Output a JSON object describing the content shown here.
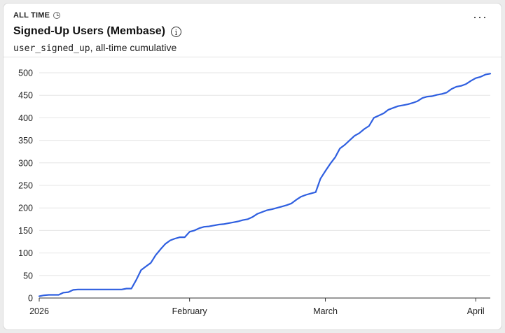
{
  "header": {
    "period_label": "ALL TIME",
    "title": "Signed-Up Users (Membase)",
    "info_icon": "info-icon",
    "subtitle_metric": "user_signed_up",
    "subtitle_rest": ", all-time cumulative",
    "more_label": "···"
  },
  "colors": {
    "line": "#2f5fe0",
    "grid": "#e6e6e6",
    "axis": "#333333"
  },
  "chart_data": {
    "type": "line",
    "title": "Signed-Up Users (Membase)",
    "xlabel": "",
    "ylabel": "",
    "ylim": [
      0,
      500
    ],
    "y_ticks": [
      0,
      50,
      100,
      150,
      200,
      250,
      300,
      350,
      400,
      450,
      500
    ],
    "x_ticks": [
      {
        "label": "2026",
        "date": "2026-01-01"
      },
      {
        "label": "February",
        "date": "2026-02-01"
      },
      {
        "label": "March",
        "date": "2026-03-01"
      },
      {
        "label": "April",
        "date": "2026-04-01"
      }
    ],
    "grid": true,
    "series": [
      {
        "values": [
          [
            "2026-01-01",
            4
          ],
          [
            "2026-01-02",
            6
          ],
          [
            "2026-01-03",
            7
          ],
          [
            "2026-01-04",
            7
          ],
          [
            "2026-01-05",
            7
          ],
          [
            "2026-01-06",
            12
          ],
          [
            "2026-01-07",
            13
          ],
          [
            "2026-01-08",
            18
          ],
          [
            "2026-01-09",
            19
          ],
          [
            "2026-01-10",
            19
          ],
          [
            "2026-01-12",
            19
          ],
          [
            "2026-01-14",
            19
          ],
          [
            "2026-01-16",
            19
          ],
          [
            "2026-01-18",
            19
          ],
          [
            "2026-01-19",
            21
          ],
          [
            "2026-01-20",
            21
          ],
          [
            "2026-01-21",
            40
          ],
          [
            "2026-01-22",
            62
          ],
          [
            "2026-01-23",
            70
          ],
          [
            "2026-01-24",
            78
          ],
          [
            "2026-01-25",
            95
          ],
          [
            "2026-01-26",
            108
          ],
          [
            "2026-01-27",
            120
          ],
          [
            "2026-01-28",
            128
          ],
          [
            "2026-01-29",
            132
          ],
          [
            "2026-01-30",
            135
          ],
          [
            "2026-01-31",
            135
          ],
          [
            "2026-02-01",
            147
          ],
          [
            "2026-02-02",
            150
          ],
          [
            "2026-02-03",
            155
          ],
          [
            "2026-02-04",
            158
          ],
          [
            "2026-02-05",
            159
          ],
          [
            "2026-02-06",
            161
          ],
          [
            "2026-02-07",
            163
          ],
          [
            "2026-02-08",
            164
          ],
          [
            "2026-02-09",
            166
          ],
          [
            "2026-02-10",
            168
          ],
          [
            "2026-02-11",
            170
          ],
          [
            "2026-02-12",
            173
          ],
          [
            "2026-02-13",
            175
          ],
          [
            "2026-02-14",
            180
          ],
          [
            "2026-02-15",
            187
          ],
          [
            "2026-02-16",
            191
          ],
          [
            "2026-02-17",
            195
          ],
          [
            "2026-02-18",
            197
          ],
          [
            "2026-02-19",
            200
          ],
          [
            "2026-02-20",
            203
          ],
          [
            "2026-02-21",
            206
          ],
          [
            "2026-02-22",
            210
          ],
          [
            "2026-02-23",
            218
          ],
          [
            "2026-02-24",
            225
          ],
          [
            "2026-02-25",
            229
          ],
          [
            "2026-02-26",
            232
          ],
          [
            "2026-02-27",
            235
          ],
          [
            "2026-02-28",
            265
          ],
          [
            "2026-03-01",
            282
          ],
          [
            "2026-03-02",
            298
          ],
          [
            "2026-03-03",
            312
          ],
          [
            "2026-03-04",
            332
          ],
          [
            "2026-03-05",
            340
          ],
          [
            "2026-03-06",
            350
          ],
          [
            "2026-03-07",
            360
          ],
          [
            "2026-03-08",
            366
          ],
          [
            "2026-03-09",
            375
          ],
          [
            "2026-03-10",
            382
          ],
          [
            "2026-03-11",
            400
          ],
          [
            "2026-03-12",
            405
          ],
          [
            "2026-03-13",
            410
          ],
          [
            "2026-03-14",
            418
          ],
          [
            "2026-03-15",
            422
          ],
          [
            "2026-03-16",
            426
          ],
          [
            "2026-03-17",
            428
          ],
          [
            "2026-03-18",
            430
          ],
          [
            "2026-03-19",
            433
          ],
          [
            "2026-03-20",
            437
          ],
          [
            "2026-03-21",
            444
          ],
          [
            "2026-03-22",
            447
          ],
          [
            "2026-03-23",
            448
          ],
          [
            "2026-03-24",
            451
          ],
          [
            "2026-03-25",
            453
          ],
          [
            "2026-03-26",
            456
          ],
          [
            "2026-03-27",
            464
          ],
          [
            "2026-03-28",
            469
          ],
          [
            "2026-03-29",
            471
          ],
          [
            "2026-03-30",
            475
          ],
          [
            "2026-03-31",
            482
          ],
          [
            "2026-04-01",
            488
          ],
          [
            "2026-04-02",
            491
          ],
          [
            "2026-04-03",
            496
          ],
          [
            "2026-04-04",
            498
          ]
        ]
      }
    ]
  }
}
